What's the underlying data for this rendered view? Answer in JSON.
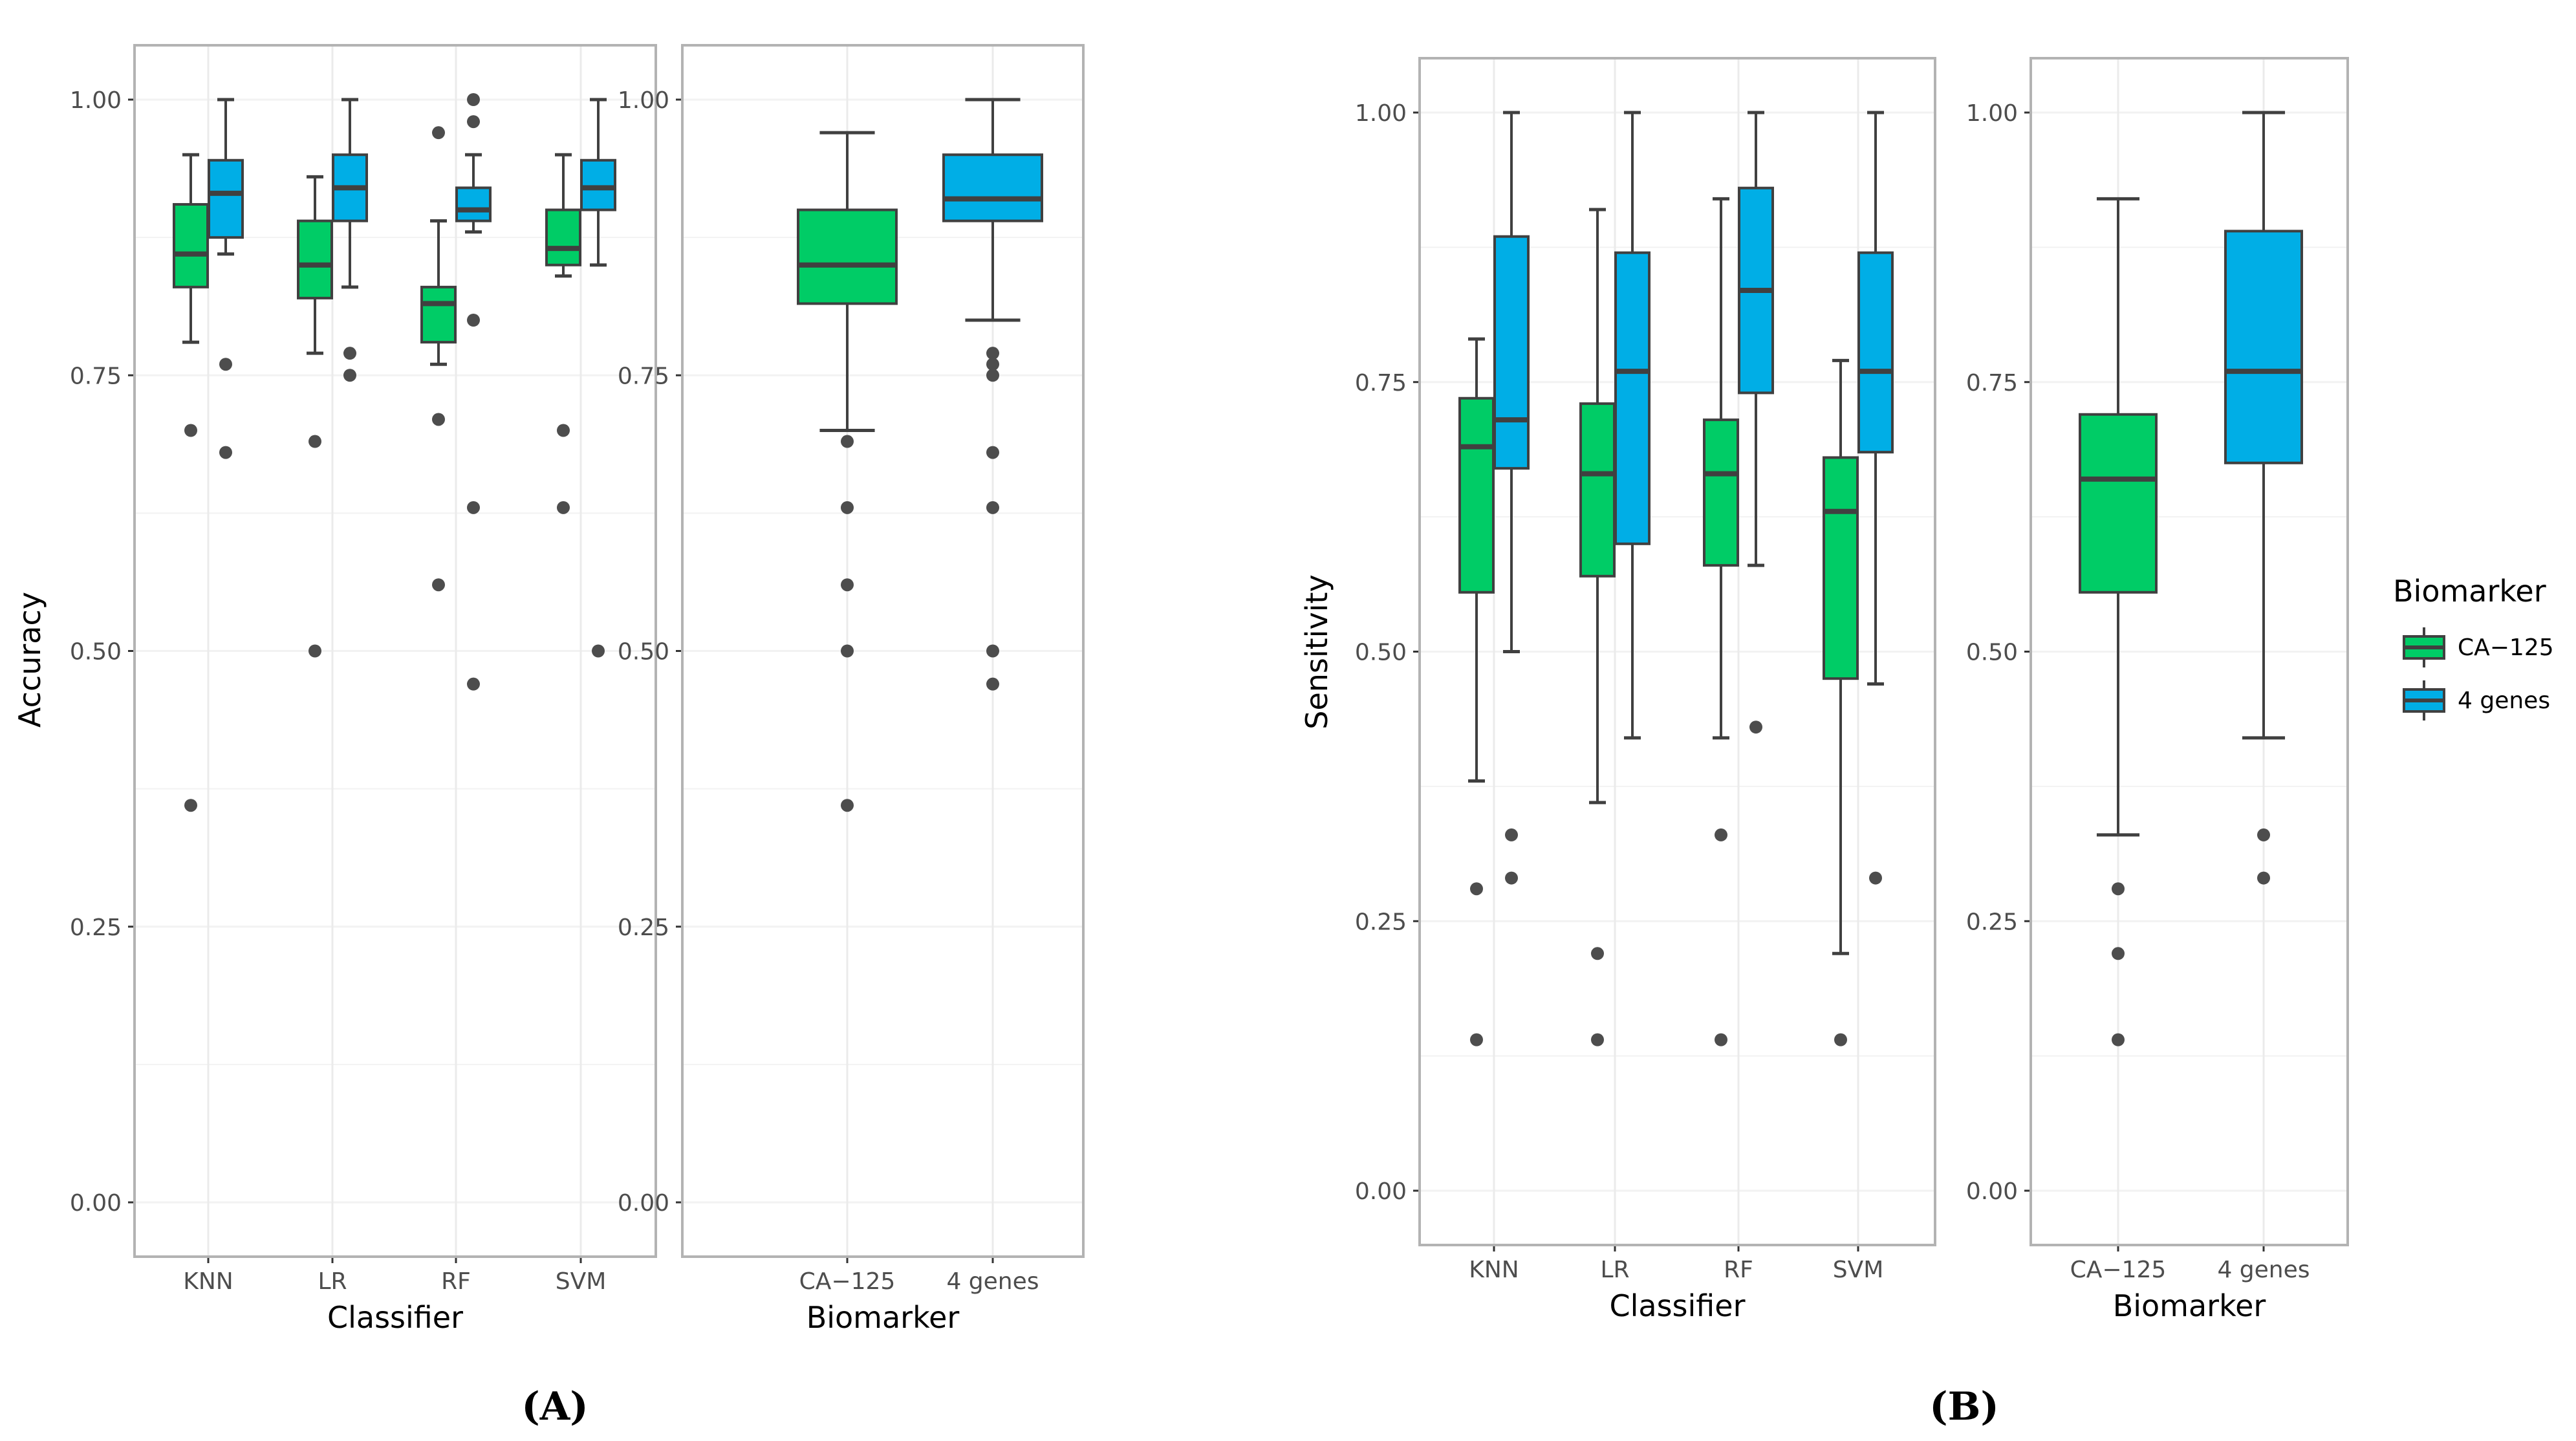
{
  "chart_data": [
    {
      "type": "boxplot",
      "panel": "A-left",
      "xlabel": "Classifier",
      "ylabel": "Accuracy",
      "ylim": [
        0,
        1.05
      ],
      "yticks": [
        "0.00",
        "0.25",
        "0.50",
        "0.75",
        "1.00"
      ],
      "categories": [
        "KNN",
        "LR",
        "RF",
        "SVM"
      ],
      "grid": true,
      "series": [
        {
          "name": "CA−125",
          "boxes": [
            {
              "category": "KNN",
              "min": 0.78,
              "q1": 0.83,
              "median": 0.86,
              "q3": 0.905,
              "max": 0.95,
              "outliers": [
                0.7,
                0.36
              ]
            },
            {
              "category": "LR",
              "min": 0.77,
              "q1": 0.82,
              "median": 0.85,
              "q3": 0.89,
              "max": 0.93,
              "outliers": [
                0.69,
                0.5
              ]
            },
            {
              "category": "RF",
              "min": 0.76,
              "q1": 0.78,
              "median": 0.815,
              "q3": 0.83,
              "max": 0.89,
              "outliers": [
                0.97,
                0.71,
                0.56
              ]
            },
            {
              "category": "SVM",
              "min": 0.84,
              "q1": 0.85,
              "median": 0.865,
              "q3": 0.9,
              "max": 0.95,
              "outliers": [
                0.7,
                0.63
              ]
            }
          ]
        },
        {
          "name": "4 genes",
          "boxes": [
            {
              "category": "KNN",
              "min": 0.86,
              "q1": 0.875,
              "median": 0.915,
              "q3": 0.945,
              "max": 1.0,
              "outliers": [
                0.76,
                0.68
              ]
            },
            {
              "category": "LR",
              "min": 0.83,
              "q1": 0.89,
              "median": 0.92,
              "q3": 0.95,
              "max": 1.0,
              "outliers": [
                0.77,
                0.75
              ]
            },
            {
              "category": "RF",
              "min": 0.88,
              "q1": 0.89,
              "median": 0.9,
              "q3": 0.92,
              "max": 0.95,
              "outliers": [
                1.0,
                0.98,
                0.8,
                0.63,
                0.47
              ]
            },
            {
              "category": "SVM",
              "min": 0.85,
              "q1": 0.9,
              "median": 0.92,
              "q3": 0.945,
              "max": 1.0,
              "outliers": [
                0.5
              ]
            }
          ]
        }
      ]
    },
    {
      "type": "boxplot",
      "panel": "A-right",
      "xlabel": "Biomarker",
      "ylabel": "",
      "ylim": [
        0,
        1.05
      ],
      "yticks": [
        "0.00",
        "0.25",
        "0.50",
        "0.75",
        "1.00"
      ],
      "categories": [
        "CA−125",
        "4 genes"
      ],
      "grid": true,
      "series": [
        {
          "name": "CA−125",
          "boxes": [
            {
              "category": "CA−125",
              "min": 0.7,
              "q1": 0.815,
              "median": 0.85,
              "q3": 0.9,
              "max": 0.97,
              "outliers": [
                0.69,
                0.63,
                0.56,
                0.5,
                0.36
              ]
            }
          ]
        },
        {
          "name": "4 genes",
          "boxes": [
            {
              "category": "4 genes",
              "min": 0.8,
              "q1": 0.89,
              "median": 0.91,
              "q3": 0.95,
              "max": 1.0,
              "outliers": [
                0.77,
                0.76,
                0.75,
                0.68,
                0.63,
                0.5,
                0.47
              ]
            }
          ]
        }
      ]
    },
    {
      "type": "boxplot",
      "panel": "B-left",
      "xlabel": "Classifier",
      "ylabel": "Sensitivity",
      "ylim": [
        0,
        1.05
      ],
      "yticks": [
        "0.00",
        "0.25",
        "0.50",
        "0.75",
        "1.00"
      ],
      "categories": [
        "KNN",
        "LR",
        "RF",
        "SVM"
      ],
      "grid": true,
      "series": [
        {
          "name": "CA−125",
          "boxes": [
            {
              "category": "KNN",
              "min": 0.38,
              "q1": 0.555,
              "median": 0.69,
              "q3": 0.735,
              "max": 0.79,
              "outliers": [
                0.28,
                0.14
              ]
            },
            {
              "category": "LR",
              "min": 0.36,
              "q1": 0.57,
              "median": 0.665,
              "q3": 0.73,
              "max": 0.91,
              "outliers": [
                0.22,
                0.14
              ]
            },
            {
              "category": "RF",
              "min": 0.42,
              "q1": 0.58,
              "median": 0.665,
              "q3": 0.715,
              "max": 0.92,
              "outliers": [
                0.33,
                0.14
              ]
            },
            {
              "category": "SVM",
              "min": 0.22,
              "q1": 0.475,
              "median": 0.63,
              "q3": 0.68,
              "max": 0.77,
              "outliers": [
                0.14
              ]
            }
          ]
        },
        {
          "name": "4 genes",
          "boxes": [
            {
              "category": "KNN",
              "min": 0.5,
              "q1": 0.67,
              "median": 0.715,
              "q3": 0.885,
              "max": 1.0,
              "outliers": [
                0.33,
                0.29
              ]
            },
            {
              "category": "LR",
              "min": 0.42,
              "q1": 0.6,
              "median": 0.76,
              "q3": 0.87,
              "max": 1.0,
              "outliers": []
            },
            {
              "category": "RF",
              "min": 0.58,
              "q1": 0.74,
              "median": 0.835,
              "q3": 0.93,
              "max": 1.0,
              "outliers": [
                0.43
              ]
            },
            {
              "category": "SVM",
              "min": 0.47,
              "q1": 0.685,
              "median": 0.76,
              "q3": 0.87,
              "max": 1.0,
              "outliers": [
                0.29
              ]
            }
          ]
        }
      ]
    },
    {
      "type": "boxplot",
      "panel": "B-right",
      "xlabel": "Biomarker",
      "ylabel": "",
      "ylim": [
        0,
        1.05
      ],
      "yticks": [
        "0.00",
        "0.25",
        "0.50",
        "0.75",
        "1.00"
      ],
      "categories": [
        "CA−125",
        "4 genes"
      ],
      "grid": true,
      "series": [
        {
          "name": "CA−125",
          "boxes": [
            {
              "category": "CA−125",
              "min": 0.33,
              "q1": 0.555,
              "median": 0.66,
              "q3": 0.72,
              "max": 0.92,
              "outliers": [
                0.28,
                0.22,
                0.14
              ]
            }
          ]
        },
        {
          "name": "4 genes",
          "boxes": [
            {
              "category": "4 genes",
              "min": 0.42,
              "q1": 0.675,
              "median": 0.76,
              "q3": 0.89,
              "max": 1.0,
              "outliers": [
                0.33,
                0.29
              ]
            }
          ]
        }
      ]
    }
  ],
  "legend": {
    "title": "Biomarker",
    "placement": "right",
    "entries": [
      {
        "label": "CA−125",
        "color": "#00cc66"
      },
      {
        "label": "4 genes",
        "color": "#00aee6"
      }
    ]
  },
  "colors": {
    "CA−125": "#00cc66",
    "4 genes": "#00aee6",
    "line": "#404040",
    "grid": "#ebebeb",
    "panel_border": "#b3b3b3"
  },
  "captions": {
    "a": "(A)",
    "b": "(B)"
  }
}
